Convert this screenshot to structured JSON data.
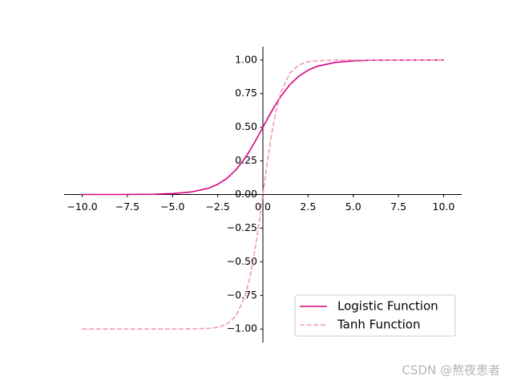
{
  "chart_data": {
    "type": "line",
    "x": [
      -10,
      -8,
      -6,
      -5,
      -4,
      -3,
      -2.5,
      -2,
      -1.5,
      -1,
      -0.75,
      -0.5,
      -0.25,
      0,
      0.25,
      0.5,
      0.75,
      1,
      1.5,
      2,
      2.5,
      3,
      4,
      5,
      6,
      8,
      10
    ],
    "series": [
      {
        "name": "Logistic Function",
        "color": "#d6037f",
        "dash": false,
        "values": [
          0.0,
          0.0,
          0.002,
          0.007,
          0.018,
          0.047,
          0.076,
          0.119,
          0.182,
          0.269,
          0.321,
          0.378,
          0.438,
          0.5,
          0.562,
          0.622,
          0.679,
          0.731,
          0.818,
          0.881,
          0.924,
          0.953,
          0.982,
          0.993,
          0.998,
          1.0,
          1.0
        ]
      },
      {
        "name": "Tanh Function",
        "color": "#f09ab7",
        "dash": true,
        "values": [
          -1.0,
          -1.0,
          -1.0,
          -1.0,
          -0.999,
          -0.995,
          -0.987,
          -0.964,
          -0.905,
          -0.762,
          -0.635,
          -0.462,
          -0.245,
          0,
          0.245,
          0.462,
          0.635,
          0.762,
          0.905,
          0.964,
          0.987,
          0.995,
          0.999,
          1.0,
          1.0,
          1.0,
          1.0
        ]
      }
    ],
    "xlim": [
      -11,
      11
    ],
    "ylim": [
      -1.1,
      1.1
    ],
    "xticks": [
      {
        "value": -10,
        "label": "−10.0"
      },
      {
        "value": -7.5,
        "label": "−7.5"
      },
      {
        "value": -5,
        "label": "−5.0"
      },
      {
        "value": -2.5,
        "label": "−2.5"
      },
      {
        "value": 0,
        "label": "0.0"
      },
      {
        "value": 2.5,
        "label": "2.5"
      },
      {
        "value": 5,
        "label": "5.0"
      },
      {
        "value": 7.5,
        "label": "7.5"
      },
      {
        "value": 10,
        "label": "10.0"
      }
    ],
    "yticks": [
      {
        "value": -1,
        "label": "−1.00"
      },
      {
        "value": -0.75,
        "label": "−0.75"
      },
      {
        "value": -0.5,
        "label": "−0.50"
      },
      {
        "value": -0.25,
        "label": "−0.25"
      },
      {
        "value": 0,
        "label": "0.00"
      },
      {
        "value": 0.25,
        "label": "0.25"
      },
      {
        "value": 0.5,
        "label": "0.50"
      },
      {
        "value": 0.75,
        "label": "0.75"
      },
      {
        "value": 1,
        "label": "1.00"
      }
    ],
    "grid": false,
    "legend": "lower right",
    "watermark": "CSDN @熬夜患者"
  }
}
